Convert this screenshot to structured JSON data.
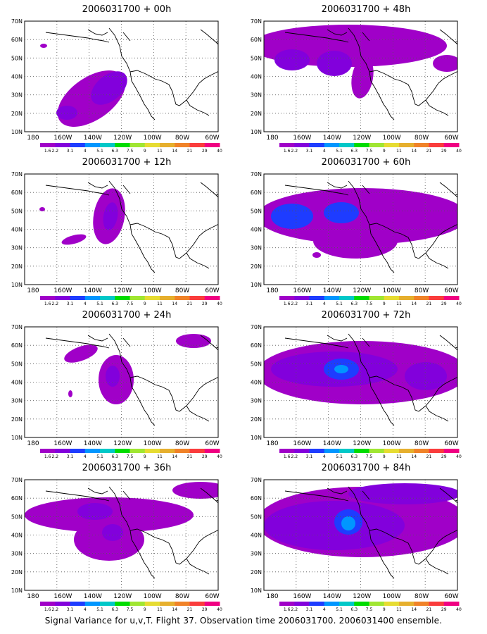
{
  "colorbar": {
    "labels": [
      "1.6",
      "2.2",
      "3.1",
      "4",
      "5.1",
      "6.3",
      "7.5",
      "9",
      "11",
      "14",
      "21",
      "29",
      "40"
    ],
    "colors": [
      "#a000c8",
      "#8200dc",
      "#1e3cff",
      "#0096ff",
      "#00c8c8",
      "#00dc00",
      "#a0e632",
      "#e6dc32",
      "#e6af2d",
      "#f08228",
      "#fa3c3c",
      "#f00082"
    ]
  },
  "map": {
    "lon_ticks": [
      "180",
      "160W",
      "140W",
      "120W",
      "100W",
      "80W",
      "60W"
    ],
    "lat_ticks": [
      "70N",
      "60N",
      "50N",
      "40N",
      "30N",
      "20N",
      "10N"
    ]
  },
  "panels": [
    {
      "title": "2006031700 + 00h",
      "blobs": [
        {
          "x": 95,
          "y": 110,
          "rx": 55,
          "ry": 30,
          "rot": -35,
          "level": 0
        },
        {
          "x": 120,
          "y": 95,
          "rx": 30,
          "ry": 18,
          "rot": -40,
          "level": 1
        },
        {
          "x": 60,
          "y": 130,
          "rx": 15,
          "ry": 10,
          "rot": 0,
          "level": 1
        },
        {
          "x": 27,
          "y": 35,
          "rx": 5,
          "ry": 3,
          "rot": 0,
          "level": 0
        }
      ]
    },
    {
      "title": "2006031700 + 48h",
      "blobs": [
        {
          "x": 120,
          "y": 35,
          "rx": 140,
          "ry": 30,
          "rot": 0,
          "level": 0
        },
        {
          "x": 100,
          "y": 60,
          "rx": 25,
          "ry": 18,
          "rot": 0,
          "level": 1
        },
        {
          "x": 40,
          "y": 55,
          "rx": 25,
          "ry": 15,
          "rot": 0,
          "level": 1
        },
        {
          "x": 140,
          "y": 80,
          "rx": 15,
          "ry": 30,
          "rot": 10,
          "level": 0
        },
        {
          "x": 260,
          "y": 60,
          "rx": 20,
          "ry": 12,
          "rot": 0,
          "level": 0
        }
      ]
    },
    {
      "title": "2006031700 + 12h",
      "blobs": [
        {
          "x": 120,
          "y": 60,
          "rx": 22,
          "ry": 40,
          "rot": 10,
          "level": 0
        },
        {
          "x": 122,
          "y": 60,
          "rx": 10,
          "ry": 20,
          "rot": 10,
          "level": 1
        },
        {
          "x": 70,
          "y": 93,
          "rx": 18,
          "ry": 6,
          "rot": -15,
          "level": 0
        },
        {
          "x": 25,
          "y": 50,
          "rx": 4,
          "ry": 3,
          "rot": 0,
          "level": 0
        }
      ]
    },
    {
      "title": "2006031700 + 24h",
      "blobs": [
        {
          "x": 130,
          "y": 75,
          "rx": 25,
          "ry": 35,
          "rot": 0,
          "level": 0
        },
        {
          "x": 125,
          "y": 70,
          "rx": 10,
          "ry": 15,
          "rot": 0,
          "level": 1
        },
        {
          "x": 80,
          "y": 38,
          "rx": 25,
          "ry": 10,
          "rot": -20,
          "level": 0
        },
        {
          "x": 240,
          "y": 20,
          "rx": 25,
          "ry": 10,
          "rot": 0,
          "level": 0
        },
        {
          "x": 65,
          "y": 95,
          "rx": 3,
          "ry": 5,
          "rot": 0,
          "level": 0
        }
      ]
    },
    {
      "title": "2006031700 + 36h",
      "blobs": [
        {
          "x": 120,
          "y": 50,
          "rx": 120,
          "ry": 25,
          "rot": 0,
          "level": 0
        },
        {
          "x": 120,
          "y": 85,
          "rx": 50,
          "ry": 30,
          "rot": 0,
          "level": 0
        },
        {
          "x": 100,
          "y": 45,
          "rx": 25,
          "ry": 12,
          "rot": 0,
          "level": 1
        },
        {
          "x": 125,
          "y": 75,
          "rx": 15,
          "ry": 12,
          "rot": 0,
          "level": 1
        },
        {
          "x": 250,
          "y": 15,
          "rx": 40,
          "ry": 12,
          "rot": 0,
          "level": 0
        }
      ]
    },
    {
      "title": "2006031700 + 60h",
      "blobs": [
        {
          "x": 140,
          "y": 60,
          "rx": 150,
          "ry": 40,
          "rot": 0,
          "level": 0
        },
        {
          "x": 130,
          "y": 95,
          "rx": 60,
          "ry": 25,
          "rot": 0,
          "level": 0
        },
        {
          "x": 40,
          "y": 60,
          "rx": 30,
          "ry": 18,
          "rot": 0,
          "level": 2
        },
        {
          "x": 110,
          "y": 55,
          "rx": 25,
          "ry": 15,
          "rot": 0,
          "level": 2
        },
        {
          "x": 75,
          "y": 115,
          "rx": 6,
          "ry": 4,
          "rot": 0,
          "level": 0
        }
      ]
    },
    {
      "title": "2006031700 + 72h",
      "blobs": [
        {
          "x": 140,
          "y": 65,
          "rx": 150,
          "ry": 45,
          "rot": 0,
          "level": 0
        },
        {
          "x": 100,
          "y": 60,
          "rx": 90,
          "ry": 25,
          "rot": 0,
          "level": 1
        },
        {
          "x": 110,
          "y": 60,
          "rx": 25,
          "ry": 15,
          "rot": 0,
          "level": 2
        },
        {
          "x": 110,
          "y": 60,
          "rx": 10,
          "ry": 6,
          "rot": 0,
          "level": 3
        },
        {
          "x": 230,
          "y": 70,
          "rx": 30,
          "ry": 20,
          "rot": 0,
          "level": 1
        }
      ]
    },
    {
      "title": "2006031700 + 84h",
      "blobs": [
        {
          "x": 140,
          "y": 60,
          "rx": 150,
          "ry": 50,
          "rot": 0,
          "level": 0
        },
        {
          "x": 100,
          "y": 65,
          "rx": 100,
          "ry": 35,
          "rot": 0,
          "level": 1
        },
        {
          "x": 120,
          "y": 60,
          "rx": 20,
          "ry": 18,
          "rot": 0,
          "level": 2
        },
        {
          "x": 120,
          "y": 62,
          "rx": 10,
          "ry": 10,
          "rot": 0,
          "level": 3
        },
        {
          "x": 200,
          "y": 20,
          "rx": 80,
          "ry": 15,
          "rot": 0,
          "level": 1
        }
      ]
    }
  ],
  "footer": "Signal Variance for u,v,T. Flight 37. Observation time 2006031700. 2006031400 ensemble."
}
